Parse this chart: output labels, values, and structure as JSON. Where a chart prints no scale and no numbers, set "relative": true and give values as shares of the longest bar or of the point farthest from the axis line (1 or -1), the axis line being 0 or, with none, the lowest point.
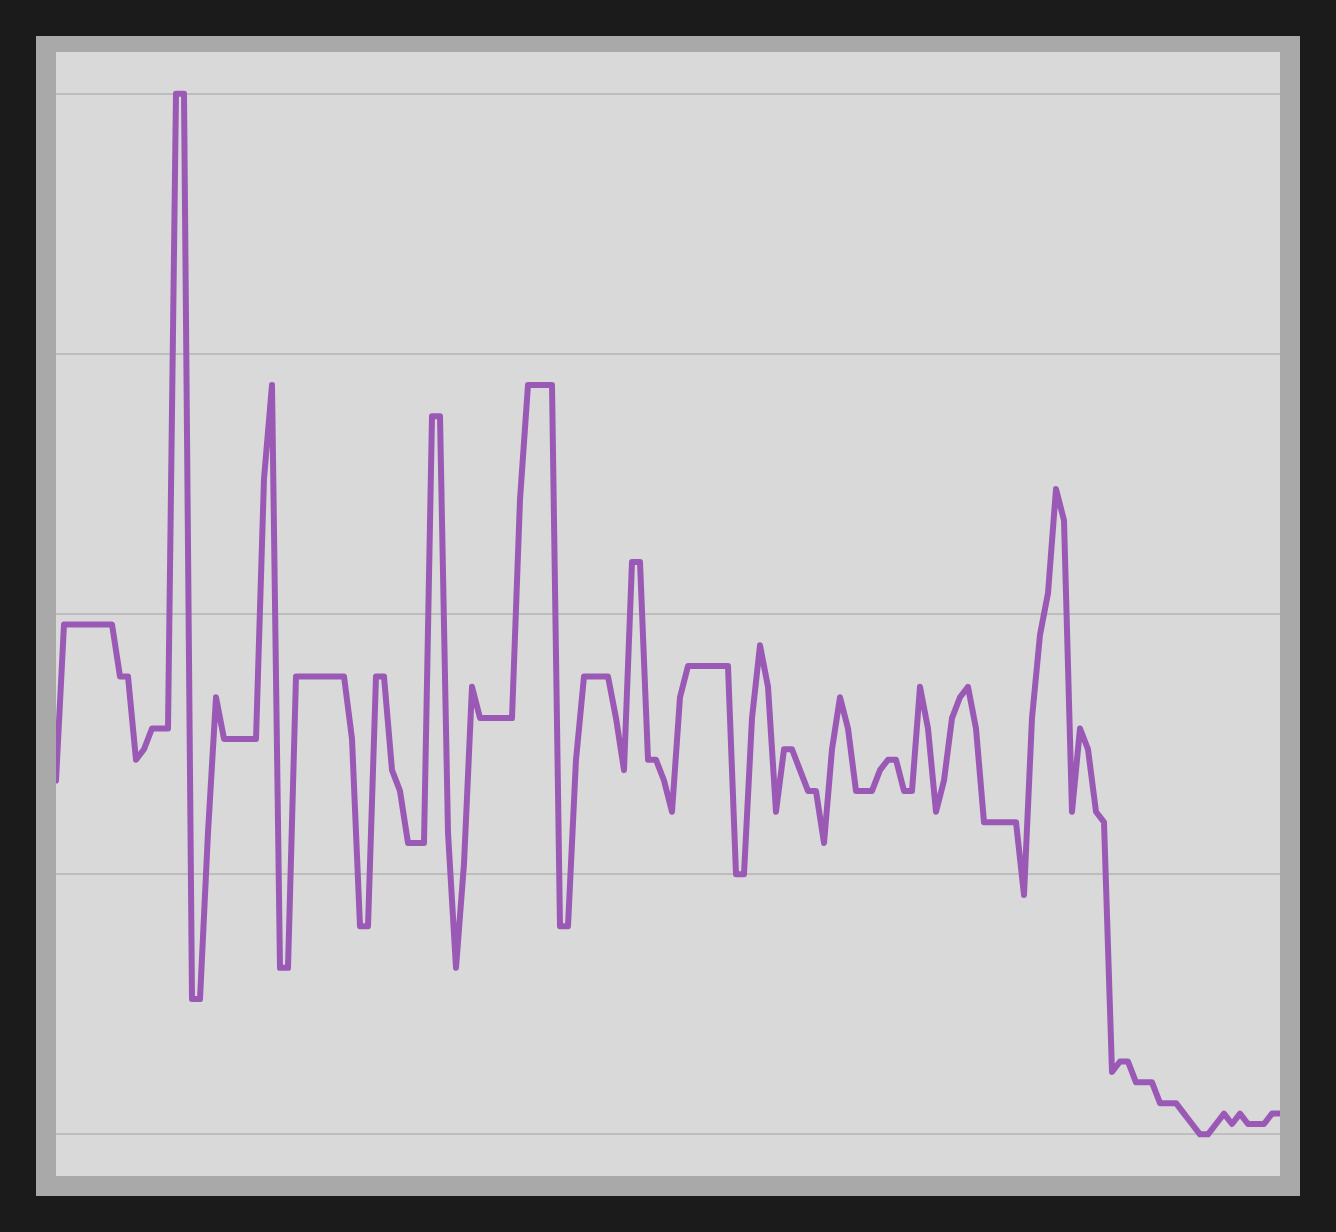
{
  "chart_data": {
    "type": "line",
    "relative": true,
    "grid": "y",
    "legend": false,
    "marker": "none",
    "line_style": "solid",
    "categories": [
      null,
      null,
      null,
      null,
      null,
      null,
      null,
      null,
      null,
      null,
      null,
      null,
      null,
      null,
      null,
      null,
      null,
      null,
      null,
      null,
      null,
      null,
      null,
      null,
      null,
      null,
      null,
      null,
      null,
      null,
      null,
      null,
      null,
      null,
      null,
      null,
      null,
      null,
      null,
      null,
      null,
      null,
      null,
      null,
      null,
      null,
      null,
      null,
      null,
      null,
      null,
      null,
      null,
      null,
      null,
      null,
      null,
      null,
      null,
      null,
      null,
      null,
      null,
      null,
      null,
      null,
      null,
      null,
      null,
      null,
      null,
      null,
      null,
      null,
      null,
      null,
      null,
      null,
      null,
      null,
      null,
      null,
      null,
      null,
      null,
      null,
      null,
      null,
      null,
      null,
      null,
      null,
      null,
      null,
      null,
      null,
      null,
      null,
      null,
      null,
      null,
      null,
      null,
      null,
      null,
      null,
      null,
      null,
      null,
      null,
      null,
      null,
      null,
      null,
      null,
      null,
      null,
      null,
      null,
      null,
      null,
      null,
      null,
      null,
      null,
      null,
      null,
      null,
      null,
      null,
      null,
      null,
      null,
      null,
      null,
      null,
      null,
      null,
      null,
      null,
      null,
      null,
      null,
      null,
      null,
      null,
      null,
      null,
      null,
      null,
      null,
      null,
      null,
      null
    ],
    "series": [
      {
        "color": "#9b59b6",
        "values": [
          0.34,
          0.49,
          0.49,
          0.49,
          0.49,
          0.49,
          0.49,
          0.49,
          0.44,
          0.44,
          0.36,
          0.37,
          0.39,
          0.39,
          0.39,
          1,
          1,
          0.13,
          0.13,
          0.29,
          0.42,
          0.38,
          0.38,
          0.38,
          0.38,
          0.38,
          0.63,
          0.72,
          0.16,
          0.16,
          0.44,
          0.44,
          0.44,
          0.44,
          0.44,
          0.44,
          0.44,
          0.38,
          0.2,
          0.2,
          0.44,
          0.44,
          0.35,
          0.33,
          0.28,
          0.28,
          0.28,
          0.69,
          0.69,
          0.29,
          0.16,
          0.26,
          0.43,
          0.4,
          0.4,
          0.4,
          0.4,
          0.4,
          0.61,
          0.72,
          0.72,
          0.72,
          0.72,
          0.2,
          0.2,
          0.36,
          0.44,
          0.44,
          0.44,
          0.44,
          0.4,
          0.35,
          0.55,
          0.55,
          0.36,
          0.36,
          0.34,
          0.31,
          0.42,
          0.45,
          0.45,
          0.45,
          0.45,
          0.45,
          0.45,
          0.25,
          0.25,
          0.4,
          0.47,
          0.43,
          0.31,
          0.37,
          0.37,
          0.35,
          0.33,
          0.33,
          0.28,
          0.37,
          0.42,
          0.39,
          0.33,
          0.33,
          0.33,
          0.35,
          0.36,
          0.36,
          0.33,
          0.33,
          0.43,
          0.39,
          0.31,
          0.34,
          0.4,
          0.42,
          0.43,
          0.39,
          0.3,
          0.3,
          0.3,
          0.3,
          0.3,
          0.23,
          0.4,
          0.48,
          0.52,
          0.62,
          0.59,
          0.31,
          0.39,
          0.37,
          0.31,
          0.3,
          0.06,
          0.07,
          0.07,
          0.05,
          0.05,
          0.05,
          0.03,
          0.03,
          0.03,
          0.02,
          0.01,
          0,
          0,
          0.01,
          0.02,
          0.01,
          0.02,
          0.01,
          0.01,
          0.01,
          0.02,
          0.02
        ]
      }
    ]
  }
}
